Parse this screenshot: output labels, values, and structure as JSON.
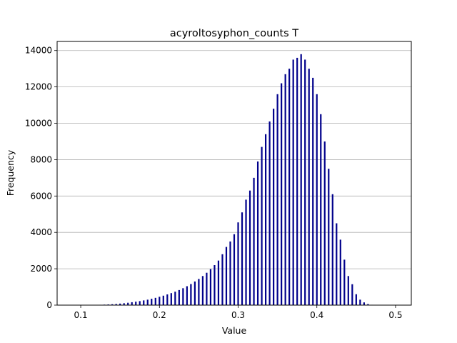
{
  "chart_data": {
    "type": "bar",
    "title": "acyroltosyphon_counts T",
    "xlabel": "Value",
    "ylabel": "Frequency",
    "xlim": [
      0.07,
      0.52
    ],
    "ylim": [
      0,
      14500
    ],
    "xticks": [
      0.1,
      0.2,
      0.3,
      0.4,
      0.5
    ],
    "xtick_labels": [
      "0.1",
      "0.2",
      "0.3",
      "0.4",
      "0.5"
    ],
    "yticks": [
      0,
      2000,
      4000,
      6000,
      8000,
      10000,
      12000,
      14000
    ],
    "ytick_labels": [
      "0",
      "2000",
      "4000",
      "6000",
      "8000",
      "10000",
      "12000",
      "14000"
    ],
    "grid": "y",
    "bar_color": "#00008b",
    "x": [
      0.1,
      0.105,
      0.11,
      0.115,
      0.12,
      0.125,
      0.13,
      0.135,
      0.14,
      0.145,
      0.15,
      0.155,
      0.16,
      0.165,
      0.17,
      0.175,
      0.18,
      0.185,
      0.19,
      0.195,
      0.2,
      0.205,
      0.21,
      0.215,
      0.22,
      0.225,
      0.23,
      0.235,
      0.24,
      0.245,
      0.25,
      0.255,
      0.26,
      0.265,
      0.27,
      0.275,
      0.28,
      0.285,
      0.29,
      0.295,
      0.3,
      0.305,
      0.31,
      0.315,
      0.32,
      0.325,
      0.33,
      0.335,
      0.34,
      0.345,
      0.35,
      0.355,
      0.36,
      0.365,
      0.37,
      0.375,
      0.38,
      0.385,
      0.39,
      0.395,
      0.4,
      0.405,
      0.41,
      0.415,
      0.42,
      0.425,
      0.43,
      0.435,
      0.44,
      0.445,
      0.45,
      0.455,
      0.46,
      0.465,
      0.47
    ],
    "values": [
      5,
      6,
      8,
      10,
      14,
      20,
      28,
      38,
      50,
      65,
      85,
      105,
      130,
      160,
      190,
      220,
      260,
      300,
      350,
      400,
      460,
      520,
      590,
      660,
      740,
      830,
      930,
      1040,
      1160,
      1300,
      1440,
      1600,
      1780,
      1980,
      2200,
      2450,
      2800,
      3200,
      3500,
      3900,
      4550,
      5100,
      5800,
      6300,
      7000,
      7900,
      8700,
      9400,
      10100,
      10800,
      11600,
      12200,
      12700,
      13000,
      13500,
      13600,
      13800,
      13500,
      13000,
      12500,
      11600,
      10500,
      9000,
      7500,
      6100,
      4500,
      3600,
      2500,
      1600,
      1150,
      600,
      300,
      150,
      60,
      20
    ]
  }
}
